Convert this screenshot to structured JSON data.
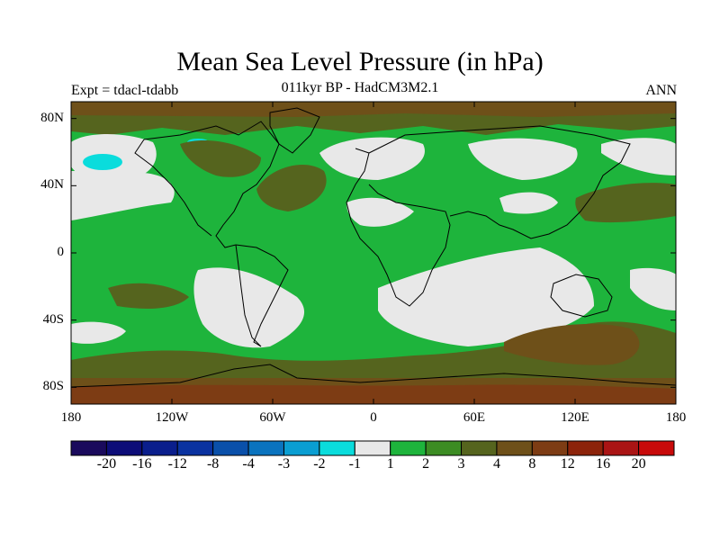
{
  "title": "Mean Sea Level Pressure (in hPa)",
  "subtitle": "011kyr BP - HadCM3M2.1",
  "left_string": "Expt = tdacl-tdabb",
  "right_string": "ANN",
  "map": {
    "lat_labels": [
      "80N",
      "40N",
      "0",
      "40S",
      "80S"
    ],
    "lon_labels": [
      "180",
      "120W",
      "60W",
      "0",
      "60E",
      "120E",
      "180"
    ],
    "lat_values": [
      80,
      40,
      0,
      -40,
      -80
    ],
    "lon_values": [
      -180,
      -120,
      -60,
      0,
      60,
      120,
      180
    ],
    "lon_range": [
      -180,
      180
    ],
    "lat_range": [
      -90,
      90
    ],
    "projection": "cylindrical equidistant"
  },
  "colorbar": {
    "labels": [
      "-20",
      "-16",
      "-12",
      "-8",
      "-4",
      "-3",
      "-2",
      "-1",
      "1",
      "2",
      "3",
      "4",
      "8",
      "12",
      "16",
      "20"
    ],
    "colors": [
      "#1a0a5c",
      "#0d0d78",
      "#0a1e8c",
      "#0a32a0",
      "#0a50aa",
      "#0a73be",
      "#0a9ed2",
      "#0adcdc",
      "#e8e8e8",
      "#1eb43c",
      "#3c8c23",
      "#55641e",
      "#6e5019",
      "#7d3c14",
      "#8c230a",
      "#aa1414",
      "#c80a0a"
    ]
  }
}
